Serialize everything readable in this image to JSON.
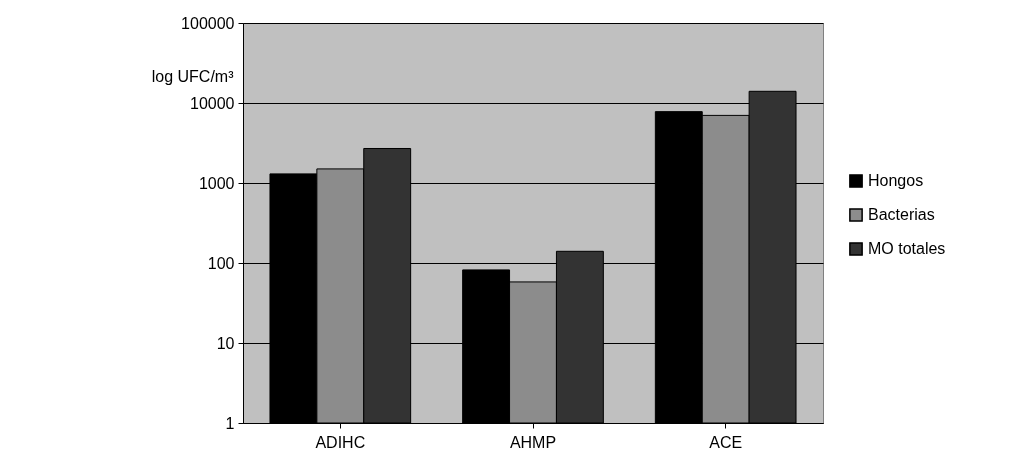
{
  "chart_data": {
    "type": "bar",
    "ylabel": "log UFC/m³",
    "categories": [
      "ADIHC",
      "AHMP",
      "ACE"
    ],
    "series": [
      {
        "name": "Hongos",
        "color": "#000000",
        "values": [
          1300,
          82,
          7800
        ]
      },
      {
        "name": "Bacterias",
        "color": "#8c8c8c",
        "values": [
          1500,
          58,
          7000
        ]
      },
      {
        "name": "MO totales",
        "color": "#333333",
        "values": [
          2700,
          140,
          14000
        ]
      }
    ],
    "log": true,
    "ylim": [
      1,
      100000
    ],
    "yticks": [
      1,
      10,
      100,
      1000,
      10000,
      100000
    ],
    "grid": "y",
    "legend": "right"
  }
}
